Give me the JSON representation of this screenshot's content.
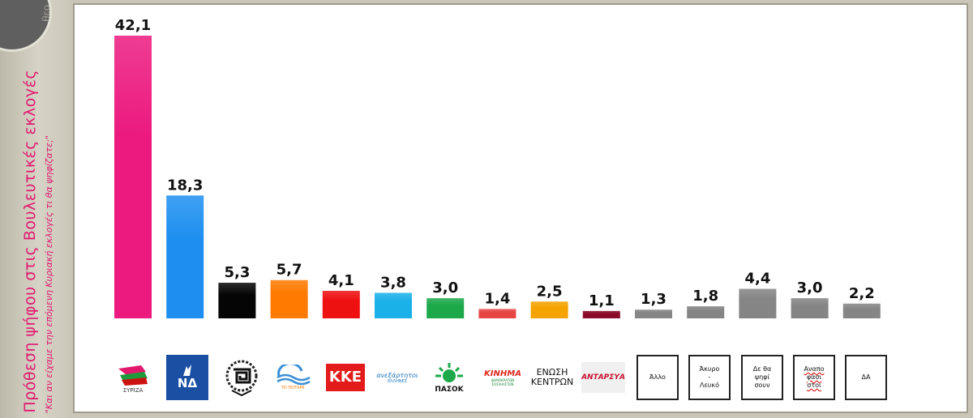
{
  "sidebar": {
    "corner_text": "θεο",
    "title": "Πρόθεση ψήφου στις Βουλευτικές εκλογές",
    "subtitle": "\"Και αν είχαμε την επόμενη Κυριακή εκλογές τι θα ψηφίζατε;\""
  },
  "colors": {
    "syriza": "#ec1a7f",
    "nd": "#1e8ff0",
    "xa": "#050505",
    "potami": "#ff7a00",
    "kke": "#ee1111",
    "anel": "#1ab0e8",
    "pasok": "#1da84a",
    "kinima": "#e84545",
    "enosi": "#f5a300",
    "antarsya": "#8b0a2a",
    "gray": "#858585"
  },
  "logos": {
    "syriza": "ΣΥΡΙΖΑ",
    "nd": "ΝΔ",
    "potami": "ΤΟ ΠΟΤΑΜΙ",
    "kke": "ΚΚΕ",
    "anel": "ανεξάρτητοι",
    "anel_sub": "ΕΛΛΗΝΕΣ",
    "pasok": "ΠΑΣΟΚ",
    "kinima": "ΚΙΝΗΜΑ",
    "kinima_sub": "ΔΗΜΟΚΡΑΤΩΝ ΣΟΣΙΑΛΙΣΤΩΝ",
    "enosi_1": "ΕΝΩΣΗ",
    "enosi_2": "ΚΕΝΤΡΩΝ",
    "antarsya": "ΑΝΤΑΡΣΥΑ",
    "allo": "Άλλο",
    "akyro_1": "Άκυρο",
    "akyro_2": "-",
    "akyro_3": "Λευκό",
    "de_1": "Δε θα",
    "de_2": "ψηφί",
    "de_3": "σουν",
    "anapo_1": "Αναπο",
    "anapo_2": "φάσι",
    "anapo_3": "στοι",
    "da": "ΔΑ"
  },
  "chart_data": {
    "type": "bar",
    "categories": [
      "ΣΥΡΙΖΑ",
      "ΝΔ",
      "Χρυσή Αυγή",
      "Το Ποτάμι",
      "ΚΚΕ",
      "Ανεξάρτητοι Έλληνες",
      "ΠΑΣΟΚ",
      "Κίνημα Δημοκρατών Σοσιαλιστών",
      "Ένωση Κεντρώων",
      "ΑΝΤΑΡΣΥΑ",
      "Άλλο",
      "Άκυρο - Λευκό",
      "Δε θα ψηφίσουν",
      "Αναποφάσιστοι",
      "ΔΑ"
    ],
    "values": [
      42.1,
      18.3,
      5.3,
      5.7,
      4.1,
      3.8,
      3.0,
      1.4,
      2.5,
      1.1,
      1.3,
      1.8,
      4.4,
      3.0,
      2.2
    ],
    "value_labels": [
      "42,1",
      "18,3",
      "5,3",
      "5,7",
      "4,1",
      "3,8",
      "3,0",
      "1,4",
      "2,5",
      "1,1",
      "1,3",
      "1,8",
      "4,4",
      "3,0",
      "2,2"
    ],
    "colors": [
      "#ec1a7f",
      "#1e8ff0",
      "#050505",
      "#ff7a00",
      "#ee1111",
      "#1ab0e8",
      "#1da84a",
      "#e84545",
      "#f5a300",
      "#8b0a2a",
      "#858585",
      "#858585",
      "#858585",
      "#858585",
      "#858585"
    ],
    "title": "",
    "xlabel": "",
    "ylabel": "",
    "ylim": [
      0,
      42.1
    ],
    "grid": false,
    "legend": "none"
  }
}
